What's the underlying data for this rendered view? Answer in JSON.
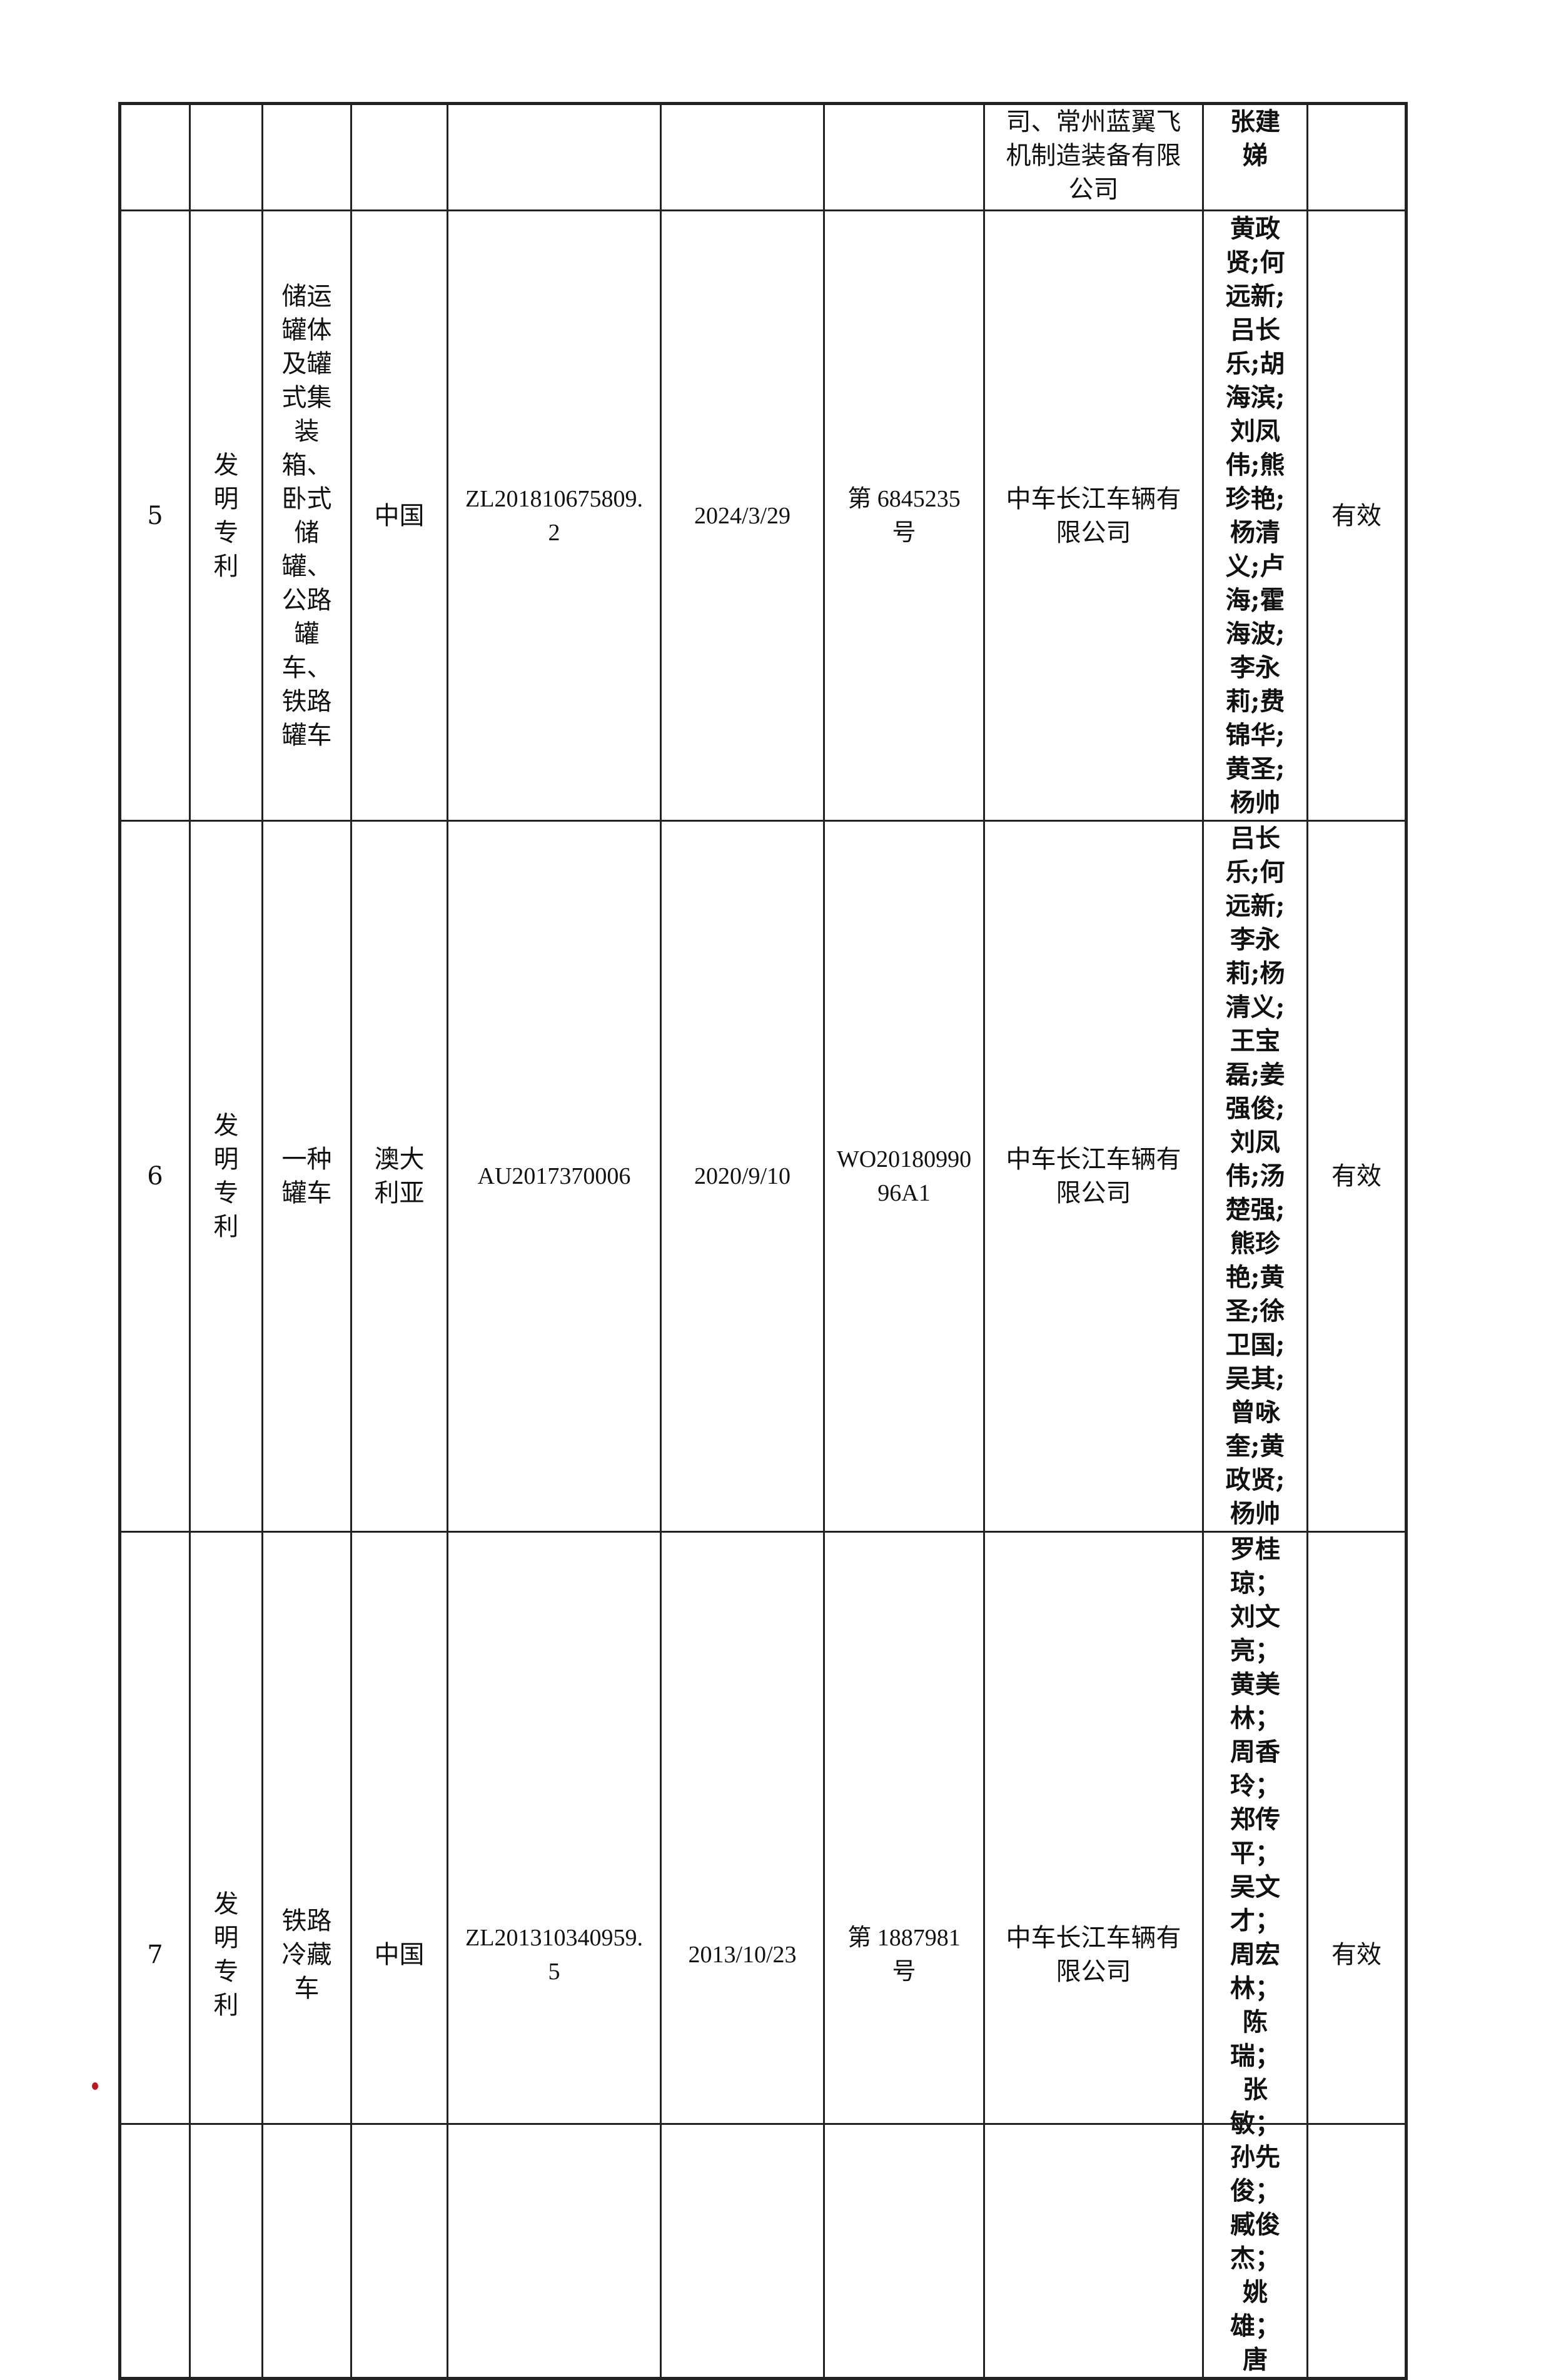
{
  "rows": [
    {
      "index": "",
      "type": "",
      "name": "",
      "country": "",
      "number": "",
      "date": "",
      "cert": "",
      "holder": "司、常州蓝翼飞机制造装备有限公司",
      "inventors": "张建娣",
      "status": ""
    },
    {
      "index": "5",
      "type": "发明专利",
      "name": "储运罐体及罐式集装箱、卧式储罐、公路罐车、铁路罐车",
      "country": "中国",
      "number": "ZL201810675809.2",
      "date": "2024/3/29",
      "cert": "第 6845235 号",
      "holder": "中车长江车辆有限公司",
      "inventors": "黄政贤;何远新;吕长乐;胡海滨;刘凤伟;熊珍艳;杨清义;卢海;霍海波;李永莉;费锦华;黄圣;杨帅",
      "status": "有效"
    },
    {
      "index": "6",
      "type": "发明专利",
      "name": "一种罐车",
      "country": "澳大利亚",
      "number": "AU2017370006",
      "date": "2020/9/10",
      "cert": "WO2018099096A1",
      "holder": "中车长江车辆有限公司",
      "inventors": "吕长乐;何远新;李永莉;杨清义;王宝磊;姜强俊;刘凤伟;汤楚强;熊珍艳;黄圣;徐卫国;吴其;曾咏奎;黄政贤;杨帅",
      "status": "有效"
    },
    {
      "index": "7",
      "type": "发明专利",
      "name": "铁路冷藏车",
      "country": "中国",
      "number": "ZL201310340959.5",
      "date": "2013/10/23",
      "cert": "第 1887981 号",
      "holder": "中车长江车辆有限公司",
      "inventors": "罗桂琼；刘文亮；黄美林；周香玲；郑传平；吴文才；周宏林；陈瑞；张敏；孙先俊；臧俊杰；姚雄；唐",
      "status": "有效"
    }
  ]
}
